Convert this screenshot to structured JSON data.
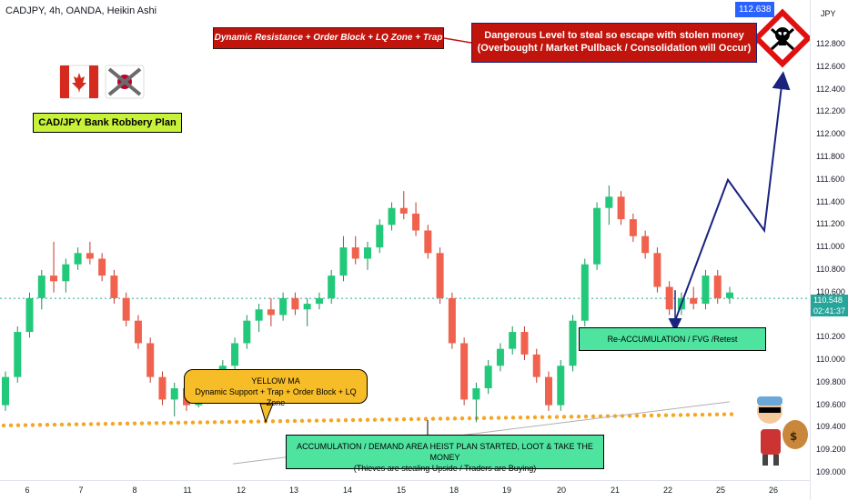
{
  "header": {
    "title": "CADJPY, 4h, OANDA, Heikin Ashi",
    "currency": "JPY"
  },
  "price_labels": {
    "top_value": "112.638",
    "last_price": "110.548",
    "countdown": "02:41:37"
  },
  "plan_label": "CAD/JPY Bank Robbery Plan",
  "annotations": {
    "resistance": "Dynamic Resistance + Order Block + LQ Zone + Trap area",
    "danger_line1": "Dangerous Level to steal so escape with stolen money",
    "danger_line2": "(Overbought / Market Pullback / Consolidation will Occur)",
    "yellow_ma_title": "YELLOW MA",
    "yellow_ma_desc": "Dynamic Support + Trap + Order Block + LQ Zone",
    "accumulation_line1": "ACCUMULATION / DEMAND AREA HEIST PLAN STARTED, LOOT & TAKE THE MONEY",
    "accumulation_line2": "(Thieves are stealing Upside / Traders are Buying)",
    "reaccumulation": "Re-ACCUMULATION / FVG /Retest"
  },
  "colors": {
    "up": "#26a69a",
    "up_body": "#22c97a",
    "down": "#f0624d",
    "ma": "#f5a623",
    "path": "#1a237e",
    "price_line": "#26a69a"
  },
  "chart_data": {
    "type": "candlestick",
    "title": "CADJPY, 4h, OANDA, Heikin Ashi",
    "ylim": [
      109.0,
      112.95
    ],
    "y_ticks": [
      "109.000",
      "109.200",
      "109.400",
      "109.600",
      "109.800",
      "110.000",
      "110.200",
      "110.400",
      "110.600",
      "110.800",
      "111.000",
      "111.200",
      "111.400",
      "111.600",
      "111.800",
      "112.000",
      "112.200",
      "112.400",
      "112.600",
      "112.800"
    ],
    "x_ticks": [
      "6",
      "7",
      "8",
      "11",
      "12",
      "13",
      "14",
      "15",
      "18",
      "19",
      "20",
      "21",
      "22",
      "25",
      "26"
    ],
    "candles": [
      [
        109.6,
        109.9,
        109.55,
        109.85
      ],
      [
        109.85,
        110.3,
        109.8,
        110.25
      ],
      [
        110.25,
        110.6,
        110.2,
        110.55
      ],
      [
        110.55,
        110.8,
        110.45,
        110.75
      ],
      [
        110.75,
        111.05,
        110.6,
        110.7
      ],
      [
        110.7,
        110.9,
        110.6,
        110.85
      ],
      [
        110.85,
        111.0,
        110.8,
        110.95
      ],
      [
        110.95,
        111.05,
        110.85,
        110.9
      ],
      [
        110.9,
        110.95,
        110.7,
        110.75
      ],
      [
        110.75,
        110.8,
        110.5,
        110.55
      ],
      [
        110.55,
        110.6,
        110.3,
        110.35
      ],
      [
        110.35,
        110.4,
        110.1,
        110.15
      ],
      [
        110.15,
        110.2,
        109.8,
        109.85
      ],
      [
        109.85,
        109.9,
        109.6,
        109.65
      ],
      [
        109.65,
        109.8,
        109.5,
        109.75
      ],
      [
        109.75,
        109.8,
        109.55,
        109.6
      ],
      [
        109.6,
        109.85,
        109.58,
        109.8
      ],
      [
        109.8,
        109.9,
        109.7,
        109.75
      ],
      [
        109.75,
        110.0,
        109.7,
        109.95
      ],
      [
        109.95,
        110.2,
        109.9,
        110.15
      ],
      [
        110.15,
        110.4,
        110.1,
        110.35
      ],
      [
        110.35,
        110.5,
        110.25,
        110.45
      ],
      [
        110.45,
        110.55,
        110.3,
        110.4
      ],
      [
        110.4,
        110.6,
        110.35,
        110.55
      ],
      [
        110.55,
        110.6,
        110.4,
        110.45
      ],
      [
        110.45,
        110.55,
        110.3,
        110.5
      ],
      [
        110.5,
        110.6,
        110.45,
        110.55
      ],
      [
        110.55,
        110.8,
        110.5,
        110.75
      ],
      [
        110.75,
        111.1,
        110.7,
        111.0
      ],
      [
        111.0,
        111.1,
        110.85,
        110.9
      ],
      [
        110.9,
        111.05,
        110.8,
        111.0
      ],
      [
        111.0,
        111.25,
        110.95,
        111.2
      ],
      [
        111.2,
        111.4,
        111.15,
        111.35
      ],
      [
        111.35,
        111.5,
        111.25,
        111.3
      ],
      [
        111.3,
        111.4,
        111.1,
        111.15
      ],
      [
        111.15,
        111.2,
        110.9,
        110.95
      ],
      [
        110.95,
        111.0,
        110.5,
        110.55
      ],
      [
        110.55,
        110.6,
        110.1,
        110.15
      ],
      [
        110.15,
        110.2,
        109.6,
        109.65
      ],
      [
        109.65,
        109.8,
        109.45,
        109.75
      ],
      [
        109.75,
        110.0,
        109.7,
        109.95
      ],
      [
        109.95,
        110.15,
        109.9,
        110.1
      ],
      [
        110.1,
        110.3,
        110.05,
        110.25
      ],
      [
        110.25,
        110.3,
        110.0,
        110.05
      ],
      [
        110.05,
        110.1,
        109.8,
        109.85
      ],
      [
        109.85,
        109.9,
        109.55,
        109.6
      ],
      [
        109.6,
        110.0,
        109.55,
        109.95
      ],
      [
        109.95,
        110.4,
        109.9,
        110.35
      ],
      [
        110.35,
        110.9,
        110.3,
        110.85
      ],
      [
        110.85,
        111.4,
        110.8,
        111.35
      ],
      [
        111.35,
        111.55,
        111.2,
        111.45
      ],
      [
        111.45,
        111.5,
        111.2,
        111.25
      ],
      [
        111.25,
        111.3,
        111.05,
        111.1
      ],
      [
        111.1,
        111.15,
        110.9,
        110.95
      ],
      [
        110.95,
        111.0,
        110.6,
        110.65
      ],
      [
        110.65,
        110.7,
        110.4,
        110.45
      ],
      [
        110.45,
        110.6,
        110.4,
        110.55
      ],
      [
        110.55,
        110.65,
        110.45,
        110.5
      ],
      [
        110.5,
        110.8,
        110.45,
        110.75
      ],
      [
        110.75,
        110.8,
        110.5,
        110.55
      ],
      [
        110.55,
        110.65,
        110.5,
        110.6
      ]
    ],
    "moving_average": {
      "name": "YELLOW MA",
      "start": 109.42,
      "end": 109.52
    },
    "trend_line": {
      "start": 109.08,
      "end": 109.63
    },
    "projection_path": [
      110.35,
      111.6,
      111.15,
      112.5
    ],
    "horizontal_price_line": 110.548
  }
}
